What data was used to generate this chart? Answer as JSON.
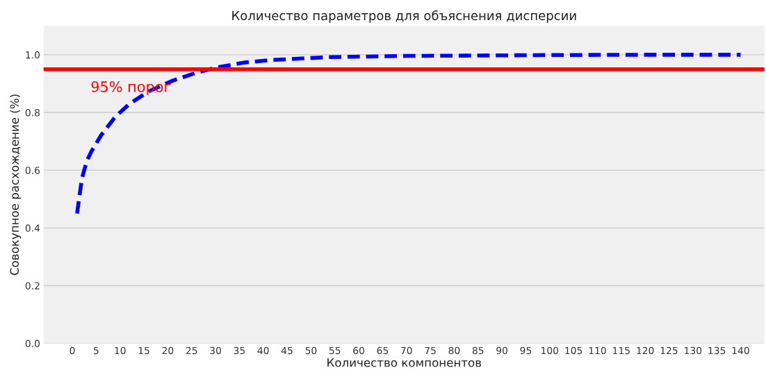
{
  "chart_data": {
    "type": "line",
    "title": "Количество параметров для объяснения дисперсии",
    "xlabel": "Количество компонентов",
    "ylabel": "Совокупное расхождение (%)",
    "x": [
      1,
      2,
      3,
      4,
      6,
      9,
      12,
      16,
      21,
      26,
      30,
      36,
      42,
      54,
      70,
      82,
      100,
      120,
      140
    ],
    "series": [
      {
        "color": "#0000ff",
        "values": [
          0.45,
          0.57,
          0.63,
          0.665,
          0.72,
          0.785,
          0.83,
          0.873,
          0.91,
          0.938,
          0.955,
          0.973,
          0.982,
          0.992,
          0.996,
          0.997,
          0.999,
          1.0,
          1.0
        ]
      }
    ],
    "line_style": "dashed",
    "marker": "none",
    "xlim": [
      -6,
      145
    ],
    "xticks": [
      0,
      5,
      10,
      15,
      20,
      25,
      30,
      35,
      40,
      45,
      50,
      55,
      60,
      65,
      70,
      75,
      80,
      85,
      90,
      95,
      100,
      105,
      110,
      115,
      120,
      125,
      130,
      135,
      140
    ],
    "ylim": [
      0,
      1.1
    ],
    "yticks": [
      {
        "value": 0,
        "label": "0.0"
      },
      0.2,
      0.4,
      0.6,
      0.8,
      {
        "value": 1,
        "label": "1.0"
      }
    ],
    "grid": "y",
    "ref_lines": [
      {
        "axis": "y",
        "value": 0.95,
        "label": "95% порог",
        "color": "#ff0000",
        "line_style": "solid"
      }
    ]
  }
}
